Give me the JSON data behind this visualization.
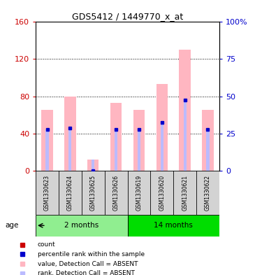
{
  "title": "GDS5412 / 1449770_x_at",
  "samples": [
    "GSM1330623",
    "GSM1330624",
    "GSM1330625",
    "GSM1330626",
    "GSM1330619",
    "GSM1330620",
    "GSM1330621",
    "GSM1330622"
  ],
  "absent_value": [
    65,
    80,
    12,
    73,
    65,
    93,
    130,
    65
  ],
  "absent_rank_pct": [
    27.5,
    28.8,
    7.5,
    27.5,
    27.5,
    31.25,
    47.5,
    26.25
  ],
  "percentile_rank": [
    27.5,
    28.75,
    0,
    27.5,
    27.5,
    32.5,
    47.5,
    27.5
  ],
  "group1_label": "2 months",
  "group2_label": "14 months",
  "group1_indices": [
    0,
    1,
    2,
    3
  ],
  "group2_indices": [
    4,
    5,
    6,
    7
  ],
  "group1_color": "#90EE90",
  "group2_color": "#00DD00",
  "absent_bar_color": "#FFB6C1",
  "rank_bar_color": "#BBBBFF",
  "count_color": "#CC0000",
  "percentile_color": "#0000CC",
  "left_ylim": [
    0,
    160
  ],
  "left_yticks": [
    0,
    40,
    80,
    120,
    160
  ],
  "right_ylim": [
    0,
    100
  ],
  "right_yticks": [
    0,
    25,
    50,
    75,
    100
  ],
  "right_yticklabels": [
    "0",
    "25",
    "50",
    "75",
    "100%"
  ],
  "left_tick_color": "#CC0000",
  "right_tick_color": "#0000CC",
  "grid_linestyle": ":",
  "grid_linewidth": 0.8
}
